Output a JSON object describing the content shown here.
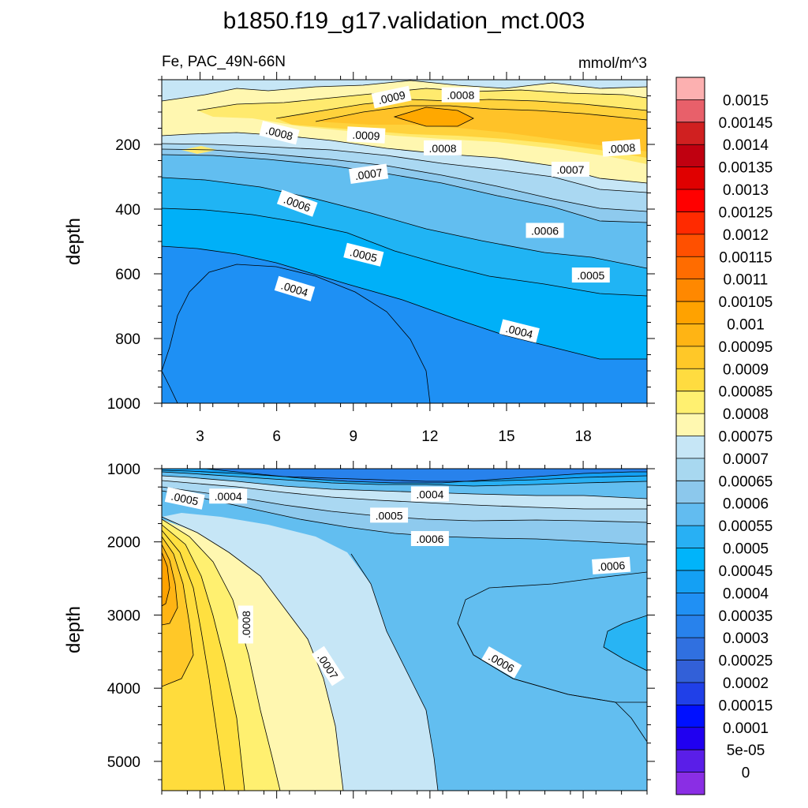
{
  "title": "b1850.f19_g17.validation_mct.003",
  "subtitle_left": "Fe, PAC_49N-66N",
  "units": "mmol/m^3",
  "chart_data": [
    {
      "type": "contour",
      "panel": "upper",
      "ylabel": "depth",
      "xlim": [
        1.5,
        20.5
      ],
      "ylim": [
        0,
        1000
      ],
      "y_inverted": true,
      "xticks": [
        3,
        6,
        9,
        12,
        15,
        18
      ],
      "yticks": [
        200,
        400,
        600,
        800,
        1000
      ],
      "contour_labels": [
        {
          "text": ".0009",
          "x": 10.5,
          "y": 55,
          "angle": -12
        },
        {
          "text": ".0008",
          "x": 13.2,
          "y": 48,
          "angle": 0
        },
        {
          "text": ".0008",
          "x": 6.1,
          "y": 165,
          "angle": 14
        },
        {
          "text": ".0009",
          "x": 9.5,
          "y": 172,
          "angle": 3
        },
        {
          "text": ".0008",
          "x": 12.5,
          "y": 212,
          "angle": 0
        },
        {
          "text": ".0008",
          "x": 19.5,
          "y": 212,
          "angle": -4
        },
        {
          "text": ".0007",
          "x": 9.6,
          "y": 292,
          "angle": -8
        },
        {
          "text": ".0007",
          "x": 17.5,
          "y": 278,
          "angle": 0
        },
        {
          "text": ".0006",
          "x": 6.8,
          "y": 383,
          "angle": 20
        },
        {
          "text": ".0006",
          "x": 16.5,
          "y": 467,
          "angle": 0
        },
        {
          "text": ".0005",
          "x": 9.4,
          "y": 542,
          "angle": 14
        },
        {
          "text": ".0005",
          "x": 18.3,
          "y": 605,
          "angle": 0
        },
        {
          "text": ".0004",
          "x": 6.7,
          "y": 647,
          "angle": 17
        },
        {
          "text": ".0004",
          "x": 15.5,
          "y": 778,
          "angle": 14
        }
      ]
    },
    {
      "type": "contour",
      "panel": "lower",
      "ylabel": "depth",
      "xlim": [
        1.5,
        20.5
      ],
      "ylim": [
        1000,
        5400
      ],
      "y_inverted": true,
      "xticks": [
        3,
        6,
        9,
        12,
        15,
        18
      ],
      "yticks": [
        1000,
        2000,
        3000,
        4000,
        5000
      ],
      "contour_labels": [
        {
          "text": ".0005",
          "x": 2.4,
          "y": 1410,
          "angle": 12
        },
        {
          "text": ".0004",
          "x": 4.1,
          "y": 1380,
          "angle": 0
        },
        {
          "text": ".0004",
          "x": 12.0,
          "y": 1350,
          "angle": 0
        },
        {
          "text": ".0005",
          "x": 10.4,
          "y": 1640,
          "angle": 0
        },
        {
          "text": ".0006",
          "x": 12.0,
          "y": 1960,
          "angle": 0
        },
        {
          "text": ".0006",
          "x": 19.1,
          "y": 2330,
          "angle": -4
        },
        {
          "text": ".0008",
          "x": 4.8,
          "y": 3130,
          "angle": -90
        },
        {
          "text": ".0007",
          "x": 8.0,
          "y": 3700,
          "angle": 57
        },
        {
          "text": ".0006",
          "x": 14.8,
          "y": 3650,
          "angle": 30
        }
      ]
    }
  ],
  "colorbar": {
    "labels": [
      "0.0015",
      "0.00145",
      "0.0014",
      "0.00135",
      "0.0013",
      "0.00125",
      "0.0012",
      "0.00115",
      "0.0011",
      "0.00105",
      "0.001",
      "0.00095",
      "0.0009",
      "0.00085",
      "0.0008",
      "0.00075",
      "0.0007",
      "0.00065",
      "0.0006",
      "0.00055",
      "0.0005",
      "0.00045",
      "0.0004",
      "0.00035",
      "0.0003",
      "0.00025",
      "0.0002",
      "0.00015",
      "0.0001",
      "5e-05",
      "0"
    ],
    "colors": [
      "#fcb0b0",
      "#e8606a",
      "#d02020",
      "#c00010",
      "#e00000",
      "#ff0000",
      "#ff2a00",
      "#ff5000",
      "#ff6c00",
      "#ff8800",
      "#ffa200",
      "#ffb414",
      "#ffc828",
      "#ffdc40",
      "#fff070",
      "#fff8b0",
      "#c6e6f6",
      "#a8d8f0",
      "#8cc8ec",
      "#62bcf0",
      "#28b0f4",
      "#00b4fa",
      "#14a0f4",
      "#2090f4",
      "#2882ec",
      "#3070e0",
      "#3260d8",
      "#2040e8",
      "#0010ff",
      "#2000f0",
      "#5a1ee8",
      "#8a2ee4"
    ]
  }
}
